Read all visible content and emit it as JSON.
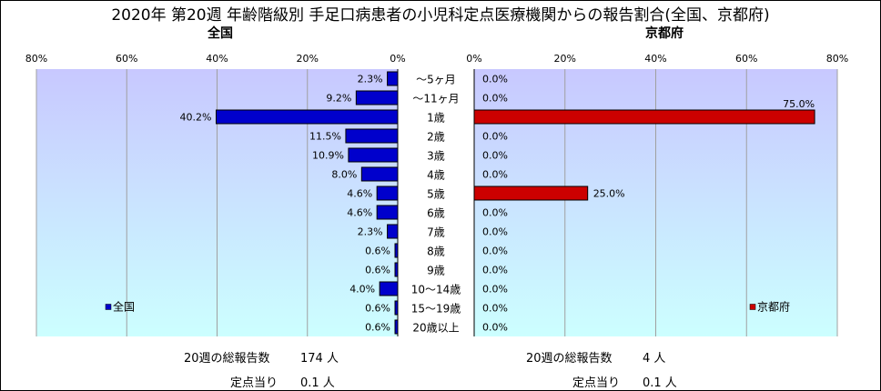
{
  "title": "2020年 第20週 年齢階級別 手足口病患者の小児科定点医療機関からの報告割合(全国、京都府)",
  "chart_data": [
    {
      "type": "bar",
      "title": "全国",
      "orientation": "horizontal-mirrored",
      "categories": [
        "～5ヶ月",
        "～11ヶ月",
        "1歳",
        "2歳",
        "3歳",
        "4歳",
        "5歳",
        "6歳",
        "7歳",
        "8歳",
        "9歳",
        "10～14歳",
        "15～19歳",
        "20歳以上"
      ],
      "series": [
        {
          "name": "全国",
          "color": "#0000cc",
          "values": [
            2.3,
            9.2,
            40.2,
            11.5,
            10.9,
            8.0,
            4.6,
            4.6,
            2.3,
            0.6,
            0.6,
            4.0,
            0.6,
            0.6
          ],
          "labels": [
            "2.3%",
            "9.2%",
            "40.2%",
            "11.5%",
            "10.9%",
            "8.0%",
            "4.6%",
            "4.6%",
            "2.3%",
            "0.6%",
            "0.6%",
            "4.0%",
            "0.6%",
            "0.6%"
          ]
        }
      ],
      "xlim": [
        0,
        80
      ],
      "ticks": [
        "80%",
        "60%",
        "40%",
        "20%",
        "0%"
      ],
      "legend_placement": "bottom-left",
      "grid": true
    },
    {
      "type": "bar",
      "title": "京都府",
      "orientation": "horizontal",
      "categories": [
        "～5ヶ月",
        "～11ヶ月",
        "1歳",
        "2歳",
        "3歳",
        "4歳",
        "5歳",
        "6歳",
        "7歳",
        "8歳",
        "9歳",
        "10～14歳",
        "15～19歳",
        "20歳以上"
      ],
      "series": [
        {
          "name": "京都府",
          "color": "#cc0000",
          "values": [
            0,
            0,
            75.0,
            0,
            0,
            0,
            25.0,
            0,
            0,
            0,
            0,
            0,
            0,
            0
          ],
          "labels": [
            "0.0%",
            "0.0%",
            "75.0%",
            "0.0%",
            "0.0%",
            "0.0%",
            "25.0%",
            "0.0%",
            "0.0%",
            "0.0%",
            "0.0%",
            "0.0%",
            "0.0%",
            "0.0%"
          ]
        }
      ],
      "xlim": [
        0,
        80
      ],
      "ticks": [
        "0%",
        "20%",
        "40%",
        "60%",
        "80%"
      ],
      "legend_placement": "bottom-right",
      "grid": true
    }
  ],
  "footer": {
    "national_total_label": "20週の総報告数",
    "national_total_value": "174 人",
    "national_per_label": "定点当り",
    "national_per_value": "0.1 人",
    "kyoto_total_label": "20週の総報告数",
    "kyoto_total_value": "4 人",
    "kyoto_per_label": "定点当り",
    "kyoto_per_value": "0.1 人"
  }
}
